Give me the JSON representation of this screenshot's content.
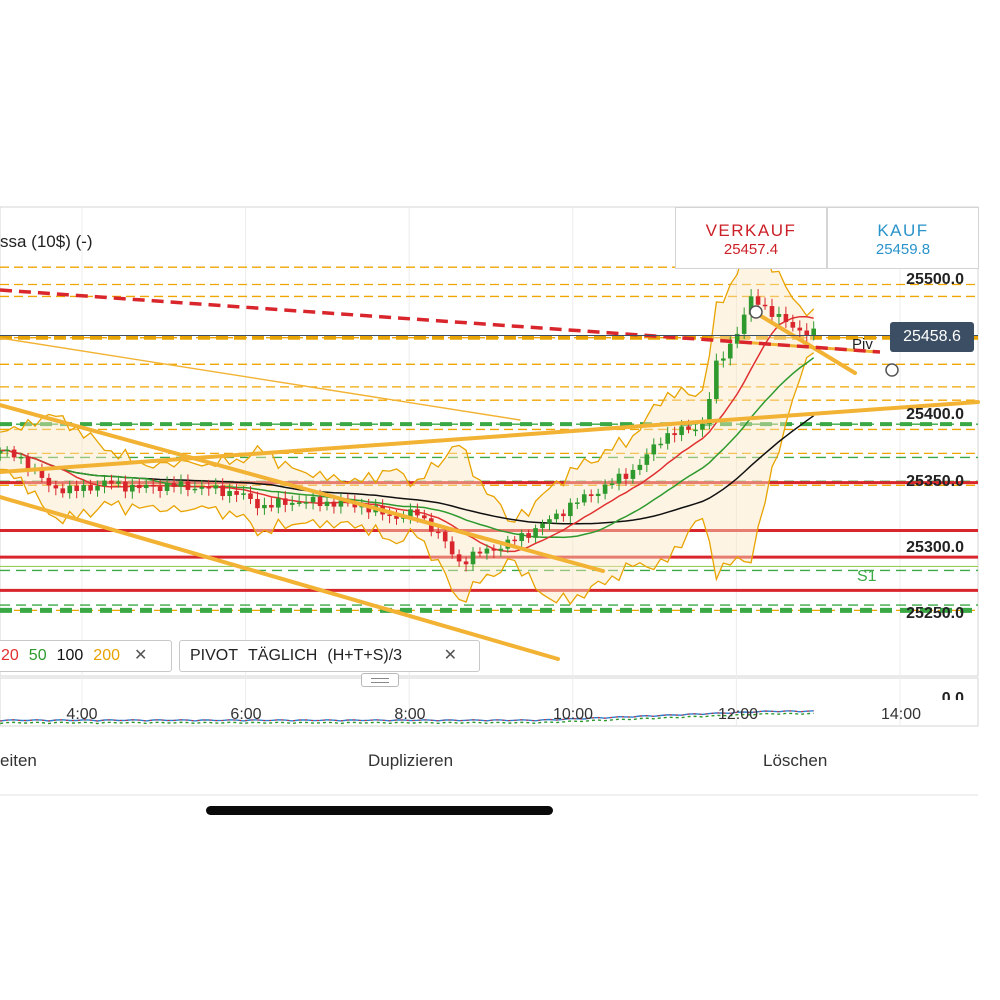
{
  "instrument": {
    "name": "ssa (10$) (-)"
  },
  "quotes": {
    "sell": {
      "label": "VERKAUF",
      "price": "25457.4",
      "color": "#cc2028"
    },
    "buy": {
      "label": "KAUF",
      "price": "25459.8",
      "color": "#2a93c9"
    }
  },
  "price_tag": "25458.6",
  "pivot_label": "Piv",
  "s1_label": "S1",
  "indicators": {
    "ma": {
      "periods": [
        {
          "label": "20",
          "color": "#e03030"
        },
        {
          "label": "50",
          "color": "#2e9a2e"
        },
        {
          "label": "100",
          "color": "#111111"
        },
        {
          "label": "200",
          "color": "#e8a300"
        }
      ],
      "close_icon": "close-icon"
    },
    "pivot": {
      "label": "PIVOT",
      "period": "TÄGLICH",
      "formula": "(H+T+S)/3",
      "close_icon": "close-icon"
    }
  },
  "actions": {
    "edit": "eiten",
    "duplicate": "Duplizieren",
    "delete": "Löschen"
  },
  "colors": {
    "bull": "#2e9a2e",
    "bear": "#d8262c",
    "trend": "#f2b233",
    "accent": "#3c4e63"
  },
  "chart_data": {
    "type": "candlestick",
    "x_tick_labels": [
      "4:00",
      "6:00",
      "8:00",
      "10:00",
      "12:00",
      "14:00"
    ],
    "x_ticks_hours": [
      4,
      6,
      8,
      10,
      12,
      14
    ],
    "y_tick_labels": [
      "25500.0",
      "25400.0",
      "25350.0",
      "25300.0",
      "25250.0"
    ],
    "y_ticks": [
      25500,
      25400,
      25350,
      25300,
      25250
    ],
    "lower_panel_tick": "0.0",
    "time_range_hours": [
      3.0,
      14.9
    ],
    "price_range": [
      25233,
      25522
    ],
    "last_price": 25458.6,
    "bid": 25457.4,
    "ask": 25459.8,
    "price_path": [
      [
        3.0,
        25372
      ],
      [
        3.3,
        25365
      ],
      [
        3.6,
        25345
      ],
      [
        3.9,
        25342
      ],
      [
        4.3,
        25348
      ],
      [
        4.7,
        25344
      ],
      [
        5.1,
        25346
      ],
      [
        5.5,
        25344
      ],
      [
        5.9,
        25340
      ],
      [
        6.2,
        25330
      ],
      [
        6.6,
        25334
      ],
      [
        7.0,
        25333
      ],
      [
        7.4,
        25331
      ],
      [
        7.8,
        25322
      ],
      [
        8.1,
        25325
      ],
      [
        8.35,
        25310
      ],
      [
        8.6,
        25288
      ],
      [
        8.9,
        25296
      ],
      [
        9.2,
        25302
      ],
      [
        9.6,
        25315
      ],
      [
        10.0,
        25332
      ],
      [
        10.4,
        25345
      ],
      [
        10.8,
        25360
      ],
      [
        11.1,
        25383
      ],
      [
        11.4,
        25388
      ],
      [
        11.6,
        25392
      ],
      [
        11.75,
        25435
      ],
      [
        12.0,
        25460
      ],
      [
        12.2,
        25488
      ],
      [
        12.5,
        25472
      ],
      [
        12.8,
        25462
      ],
      [
        13.0,
        25458.6
      ]
    ],
    "pivot_lines": {
      "red_solid": [
        25348,
        25312,
        25292,
        25267
      ],
      "green_dashed": [
        25392,
        25367,
        25349,
        25282,
        25256
      ],
      "orange_dashed": [
        25510,
        25497,
        25488,
        25457,
        25437,
        25420,
        25410,
        25388,
        25370,
        25346,
        25252
      ],
      "pivot": 25457,
      "s1": 25282
    }
  }
}
